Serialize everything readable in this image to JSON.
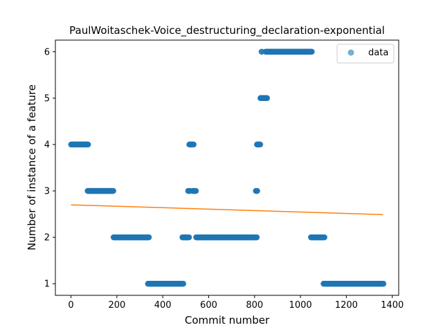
{
  "chart_data": {
    "type": "scatter",
    "title": "PaulWoitaschek-Voice_destructuring_declaration-exponential",
    "xlabel": "Commit number",
    "ylabel": "Number of instance of a feature",
    "xlim": [
      -68,
      1428
    ],
    "ylim": [
      0.75,
      6.25
    ],
    "xticks": [
      0,
      200,
      400,
      600,
      800,
      1000,
      1200,
      1400
    ],
    "yticks": [
      1,
      2,
      3,
      4,
      5,
      6
    ],
    "grid": false,
    "legend": {
      "position": "top-right",
      "entries": [
        "data"
      ]
    },
    "colors": {
      "points": "#1f77b4",
      "fit_line": "#ff7f0e"
    },
    "series": [
      {
        "name": "data",
        "kind": "scatter",
        "segments": [
          {
            "x_start": 0,
            "x_end": 75,
            "y": 4
          },
          {
            "x_start": 72,
            "x_end": 185,
            "y": 3
          },
          {
            "x_start": 185,
            "x_end": 340,
            "y": 2
          },
          {
            "x_start": 335,
            "x_end": 490,
            "y": 1
          },
          {
            "x_start": 485,
            "x_end": 515,
            "y": 2
          },
          {
            "x_start": 510,
            "x_end": 518,
            "y": 3
          },
          {
            "x_start": 515,
            "x_end": 535,
            "y": 4
          },
          {
            "x_start": 530,
            "x_end": 545,
            "y": 3
          },
          {
            "x_start": 545,
            "x_end": 810,
            "y": 2
          },
          {
            "x_start": 805,
            "x_end": 812,
            "y": 3
          },
          {
            "x_start": 810,
            "x_end": 825,
            "y": 4
          },
          {
            "x_start": 825,
            "x_end": 855,
            "y": 5
          },
          {
            "x_start": 830,
            "x_end": 832,
            "y": 6
          },
          {
            "x_start": 848,
            "x_end": 1050,
            "y": 6
          },
          {
            "x_start": 1045,
            "x_end": 1105,
            "y": 2
          },
          {
            "x_start": 1100,
            "x_end": 1362,
            "y": 1
          }
        ]
      },
      {
        "name": "fit",
        "kind": "line",
        "x": [
          0,
          1360
        ],
        "y": [
          2.7,
          2.49
        ]
      }
    ]
  }
}
